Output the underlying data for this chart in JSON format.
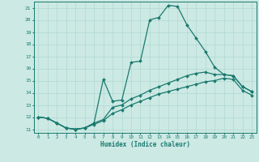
{
  "xlabel": "Humidex (Indice chaleur)",
  "background_color": "#cce9e4",
  "line_color": "#1a7a6e",
  "grid_color": "#b0d8d2",
  "xlim": [
    -0.5,
    23.5
  ],
  "ylim": [
    10.7,
    21.5
  ],
  "yticks": [
    11,
    12,
    13,
    14,
    15,
    16,
    17,
    18,
    19,
    20,
    21
  ],
  "xticks": [
    0,
    1,
    2,
    3,
    4,
    5,
    6,
    7,
    8,
    9,
    10,
    11,
    12,
    13,
    14,
    15,
    16,
    17,
    18,
    19,
    20,
    21,
    22,
    23
  ],
  "series1_x": [
    0,
    1,
    2,
    3,
    4,
    5,
    6,
    7,
    8,
    9,
    10,
    11,
    12,
    13,
    14,
    15,
    16,
    17,
    18,
    19,
    20,
    21,
    22,
    23
  ],
  "series1_y": [
    12.0,
    11.9,
    11.5,
    11.1,
    11.0,
    11.1,
    11.5,
    15.1,
    13.3,
    13.4,
    16.5,
    16.6,
    20.0,
    20.2,
    21.2,
    21.1,
    19.6,
    18.5,
    17.4,
    16.1,
    15.5,
    15.4,
    14.5,
    14.1
  ],
  "series2_x": [
    0,
    1,
    2,
    3,
    4,
    5,
    6,
    7,
    8,
    9,
    10,
    11,
    12,
    13,
    14,
    15,
    16,
    17,
    18,
    19,
    20,
    21,
    22,
    23
  ],
  "series2_y": [
    12.0,
    11.9,
    11.5,
    11.1,
    11.0,
    11.1,
    11.5,
    11.8,
    12.8,
    13.0,
    13.5,
    13.8,
    14.2,
    14.5,
    14.8,
    15.1,
    15.4,
    15.6,
    15.7,
    15.5,
    15.5,
    15.4,
    14.5,
    14.1
  ],
  "series3_x": [
    0,
    1,
    2,
    3,
    4,
    5,
    6,
    7,
    8,
    9,
    10,
    11,
    12,
    13,
    14,
    15,
    16,
    17,
    18,
    19,
    20,
    21,
    22,
    23
  ],
  "series3_y": [
    12.0,
    11.9,
    11.5,
    11.1,
    11.0,
    11.1,
    11.4,
    11.7,
    12.3,
    12.6,
    13.0,
    13.3,
    13.6,
    13.9,
    14.1,
    14.3,
    14.5,
    14.7,
    14.9,
    15.0,
    15.2,
    15.1,
    14.2,
    13.8
  ]
}
